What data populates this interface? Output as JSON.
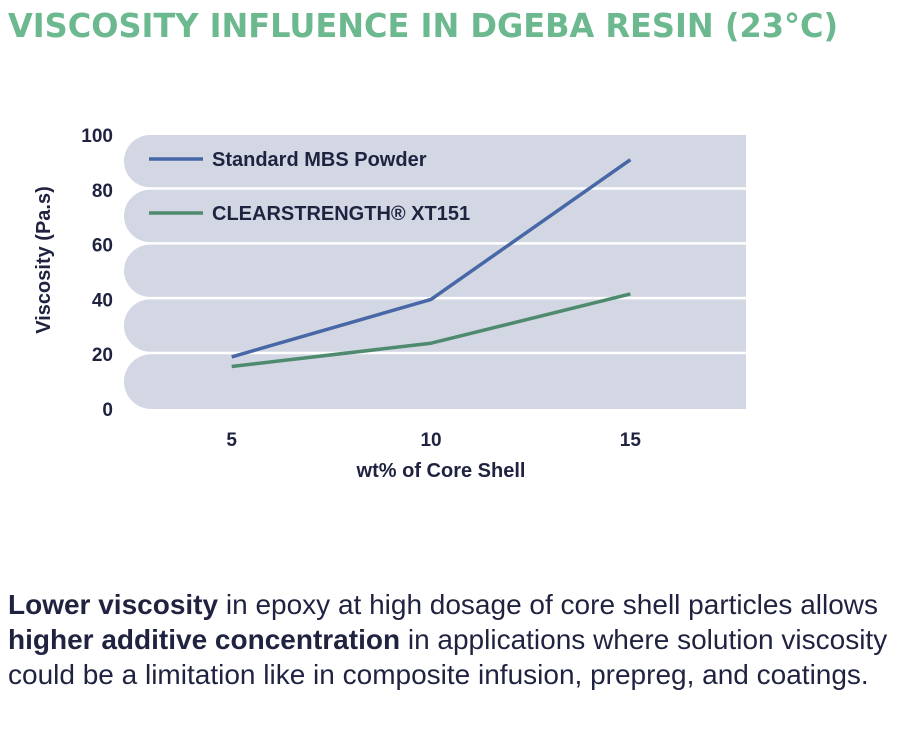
{
  "colors": {
    "title": "#6cb88f",
    "band": "#d3d7e4",
    "text": "#1f2340",
    "series_standard": "#4867a6",
    "series_clear": "#4e8a6d"
  },
  "caption": {
    "part1_bold": "Lower viscosity",
    "part2": " in epoxy at high dosage of core shell particles allows ",
    "part3_bold": "higher additive concentration",
    "part4": " in applications where solution viscosity could be a limitation like in composite infusion, prepreg, and coatings."
  },
  "chart_data": {
    "type": "line",
    "title": "VISCOSITY INFLUENCE IN DGEBA RESIN (23°C)",
    "xlabel": "wt% of Core Shell",
    "ylabel": "Viscosity (Pa.s)",
    "x": [
      5,
      10,
      15
    ],
    "x_ticks": [
      "5",
      "10",
      "15"
    ],
    "y_ticks": [
      "0",
      "20",
      "40",
      "60",
      "80",
      "100"
    ],
    "ylim": [
      0,
      100
    ],
    "grid": true,
    "legend_position": "top-left",
    "series": [
      {
        "name": "Standard MBS Powder",
        "values": [
          19,
          40,
          91
        ],
        "color": "#4867a6"
      },
      {
        "name": "CLEARSTRENGTH® XT151",
        "values": [
          15.5,
          24,
          42
        ],
        "color": "#4e8a6d"
      }
    ]
  }
}
